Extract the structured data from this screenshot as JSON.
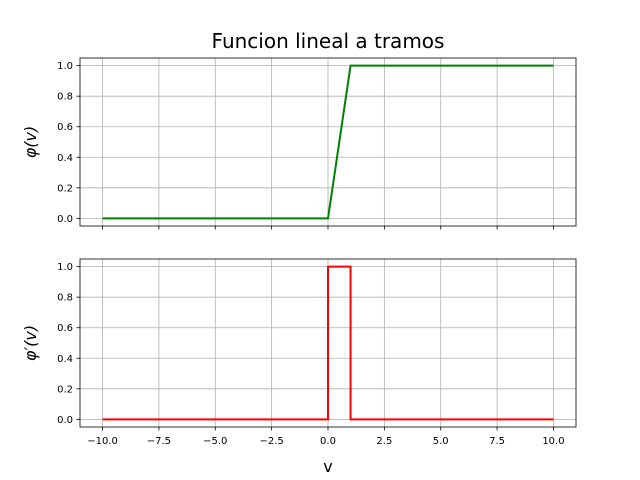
{
  "chart_data": {
    "title": "Funcion lineal a tramos",
    "xlabel": "v",
    "xlim": [
      -11,
      11
    ],
    "xticks": [
      -10,
      -7.5,
      -5,
      -2.5,
      0,
      2.5,
      5,
      7.5,
      10
    ],
    "xtick_labels": [
      "−10.0",
      "−7.5",
      "−5.0",
      "−2.5",
      "0.0",
      "2.5",
      "5.0",
      "7.5",
      "10.0"
    ],
    "grid": true,
    "sharex": true,
    "subplots": [
      {
        "type": "line",
        "ylabel": "φ(v)",
        "ylim": [
          -0.05,
          1.05
        ],
        "yticks": [
          0,
          0.2,
          0.4,
          0.6,
          0.8,
          1.0
        ],
        "ytick_labels": [
          "0.0",
          "0.2",
          "0.4",
          "0.6",
          "0.8",
          "1.0"
        ],
        "color": "#008000",
        "x": [
          -10,
          0,
          1,
          10
        ],
        "y": [
          0,
          0,
          1,
          1
        ]
      },
      {
        "type": "line",
        "ylabel": "φ′(v)",
        "ylim": [
          -0.05,
          1.05
        ],
        "yticks": [
          0,
          0.2,
          0.4,
          0.6,
          0.8,
          1.0
        ],
        "ytick_labels": [
          "0.0",
          "0.2",
          "0.4",
          "0.6",
          "0.8",
          "1.0"
        ],
        "color": "#ff0000",
        "x": [
          -10,
          0,
          0,
          1,
          1,
          10
        ],
        "y": [
          0,
          0,
          1,
          1,
          0,
          0
        ]
      }
    ]
  }
}
